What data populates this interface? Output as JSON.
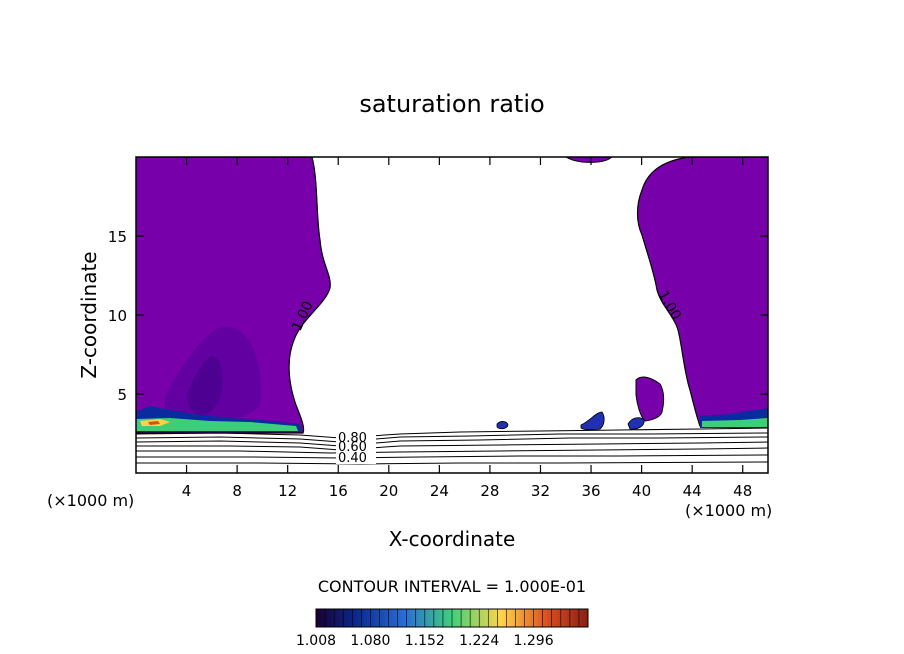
{
  "chart_data": {
    "type": "contour",
    "title": "saturation ratio",
    "xlabel": "X-coordinate",
    "ylabel": "Z-coordinate",
    "x_unit": "(×1000 m)",
    "z_unit": "(×1000 m)",
    "xlim": [
      0,
      50
    ],
    "ylim": [
      0,
      20
    ],
    "x_ticks": [
      4,
      8,
      12,
      16,
      20,
      24,
      28,
      32,
      36,
      40,
      44,
      48
    ],
    "y_ticks": [
      5,
      10,
      15
    ],
    "contour_interval_text": "CONTOUR INTERVAL = 1.000E-01",
    "contour_labels": [
      "1.00",
      "1.00",
      "0.80",
      "0.60",
      "0.40"
    ],
    "colorbar": {
      "tick_labels": [
        "1.008",
        "1.080",
        "1.152",
        "1.224",
        "1.296"
      ],
      "colors": [
        "#1a0033",
        "#0a2a8f",
        "#2a6fd6",
        "#3fd07a",
        "#ffd54a",
        "#d94f1f",
        "#8a1f16"
      ]
    },
    "fill_color": "#7700aa",
    "grid": false
  }
}
